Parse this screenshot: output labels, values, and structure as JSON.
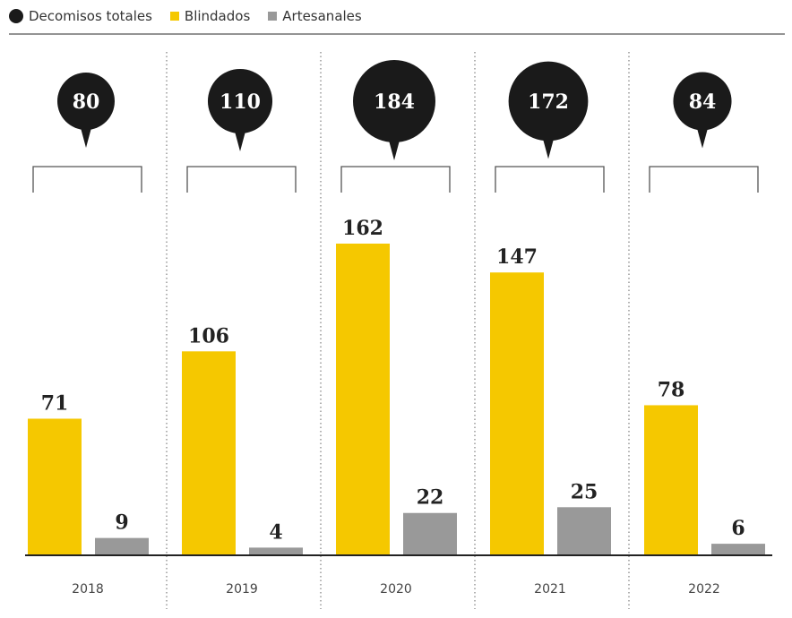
{
  "legend": {
    "total_label": "Decomisos totales",
    "blindados_label": "Blindados",
    "artesanales_label": "Artesanales"
  },
  "colors": {
    "total": "#1a1a1a",
    "blindados": "#f5c800",
    "artesanales": "#999999",
    "baseline": "#222222",
    "divider": "#888888"
  },
  "chart_data": {
    "type": "bar",
    "categories": [
      "2018",
      "2019",
      "2020",
      "2021",
      "2022"
    ],
    "totals": [
      80,
      110,
      184,
      172,
      84
    ],
    "series": [
      {
        "name": "Blindados",
        "values": [
          71,
          106,
          162,
          147,
          78
        ]
      },
      {
        "name": "Artesanales",
        "values": [
          9,
          4,
          22,
          25,
          6
        ]
      }
    ],
    "ylim": [
      0,
      162
    ],
    "grid": false,
    "legend_position": "top-left"
  }
}
